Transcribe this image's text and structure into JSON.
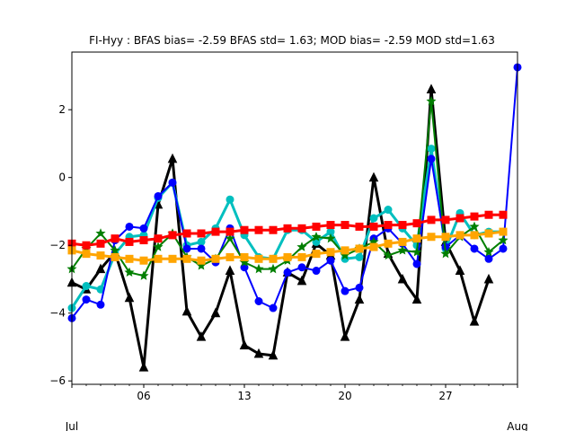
{
  "chart_data": {
    "type": "line",
    "title": "FI-Hyy   : BFAS bias= -2.59 BFAS std= 1.63; MOD bias= -2.59 MOD std=1.63",
    "xlabel": "",
    "ylabel": "",
    "xlim": [
      1,
      32
    ],
    "ylim": [
      -6.1,
      3.7
    ],
    "grid": false,
    "x": [
      1,
      2,
      3,
      4,
      5,
      6,
      7,
      8,
      9,
      10,
      11,
      12,
      13,
      14,
      15,
      16,
      17,
      18,
      19,
      20,
      21,
      22,
      23,
      24,
      25,
      26,
      27,
      28,
      29,
      30,
      31,
      32
    ],
    "x_ticks": [
      {
        "x": 1,
        "label": ""
      },
      {
        "x": 6,
        "label": "06"
      },
      {
        "x": 13,
        "label": "13"
      },
      {
        "x": 20,
        "label": "20"
      },
      {
        "x": 27,
        "label": "27"
      },
      {
        "x": 32,
        "label": ""
      }
    ],
    "x_month_labels": [
      {
        "x": 1,
        "label": "Jul"
      },
      {
        "x": 32,
        "label": "Aug"
      }
    ],
    "y_ticks": [
      -6,
      -4,
      -2,
      0,
      2
    ],
    "series": [
      {
        "color": "#000000",
        "marker": "triangle",
        "linewidth": 3,
        "values": [
          -3.1,
          -3.3,
          -2.7,
          -2.2,
          -3.55,
          -5.6,
          -0.8,
          0.55,
          -3.95,
          -4.7,
          -4.0,
          -2.75,
          -4.95,
          -5.2,
          -5.25,
          -2.8,
          -3.05,
          -1.95,
          -2.3,
          -4.7,
          -3.6,
          0.0,
          -2.25,
          -3.0,
          -3.6,
          2.6,
          -1.9,
          -2.75,
          -4.25,
          -3.0,
          null,
          null
        ]
      },
      {
        "color": "#00bfbf",
        "marker": "circle",
        "linewidth": 3,
        "values": [
          -3.85,
          -3.2,
          -3.3,
          -2.25,
          -1.75,
          -1.7,
          -0.6,
          -0.15,
          -2.0,
          -1.9,
          -1.5,
          -0.65,
          -1.7,
          -2.35,
          -2.4,
          -1.55,
          -1.55,
          -1.9,
          -1.6,
          -2.4,
          -2.35,
          -1.2,
          -0.95,
          -1.5,
          -2.0,
          0.85,
          -2.1,
          -1.05,
          -1.7,
          -1.6,
          -1.6,
          null
        ]
      },
      {
        "color": "#0000ff",
        "marker": "circle",
        "linewidth": 2,
        "values": [
          -4.15,
          -3.6,
          -3.75,
          -1.85,
          -1.45,
          -1.5,
          -0.55,
          -0.15,
          -2.1,
          -2.1,
          -2.5,
          -1.5,
          -2.65,
          -3.65,
          -3.85,
          -2.8,
          -2.65,
          -2.75,
          -2.45,
          -3.35,
          -3.25,
          -1.8,
          -1.5,
          -1.95,
          -2.55,
          0.55,
          -2.05,
          -1.7,
          -2.1,
          -2.4,
          -2.1,
          3.25
        ]
      },
      {
        "color": "#007f00",
        "marker": "star",
        "linewidth": 2,
        "values": [
          -2.7,
          -2.1,
          -1.65,
          -2.15,
          -2.8,
          -2.9,
          -2.05,
          -1.65,
          -2.35,
          -2.6,
          -2.4,
          -1.8,
          -2.5,
          -2.7,
          -2.7,
          -2.45,
          -2.05,
          -1.75,
          -1.8,
          -2.3,
          -2.1,
          -1.9,
          -2.3,
          -2.15,
          -2.2,
          2.25,
          -2.25,
          -1.75,
          -1.45,
          -2.2,
          -1.85,
          null
        ]
      },
      {
        "color": "#ff0000",
        "marker": "square",
        "linewidth": 3,
        "values": [
          -1.95,
          -2.0,
          -1.95,
          -1.8,
          -1.9,
          -1.85,
          -1.8,
          -1.7,
          -1.65,
          -1.65,
          -1.6,
          -1.6,
          -1.55,
          -1.55,
          -1.55,
          -1.5,
          -1.5,
          -1.45,
          -1.4,
          -1.4,
          -1.45,
          -1.45,
          -1.4,
          -1.4,
          -1.35,
          -1.25,
          -1.25,
          -1.2,
          -1.15,
          -1.1,
          -1.1,
          null
        ]
      },
      {
        "color": "#ffa500",
        "marker": "square",
        "linewidth": 3,
        "values": [
          -2.15,
          -2.25,
          -2.3,
          -2.35,
          -2.4,
          -2.45,
          -2.4,
          -2.4,
          -2.4,
          -2.45,
          -2.4,
          -2.35,
          -2.35,
          -2.4,
          -2.4,
          -2.35,
          -2.35,
          -2.25,
          -2.2,
          -2.15,
          -2.1,
          -2.05,
          -1.95,
          -1.9,
          -1.8,
          -1.75,
          -1.75,
          -1.7,
          -1.7,
          -1.65,
          -1.6,
          null
        ]
      }
    ]
  }
}
